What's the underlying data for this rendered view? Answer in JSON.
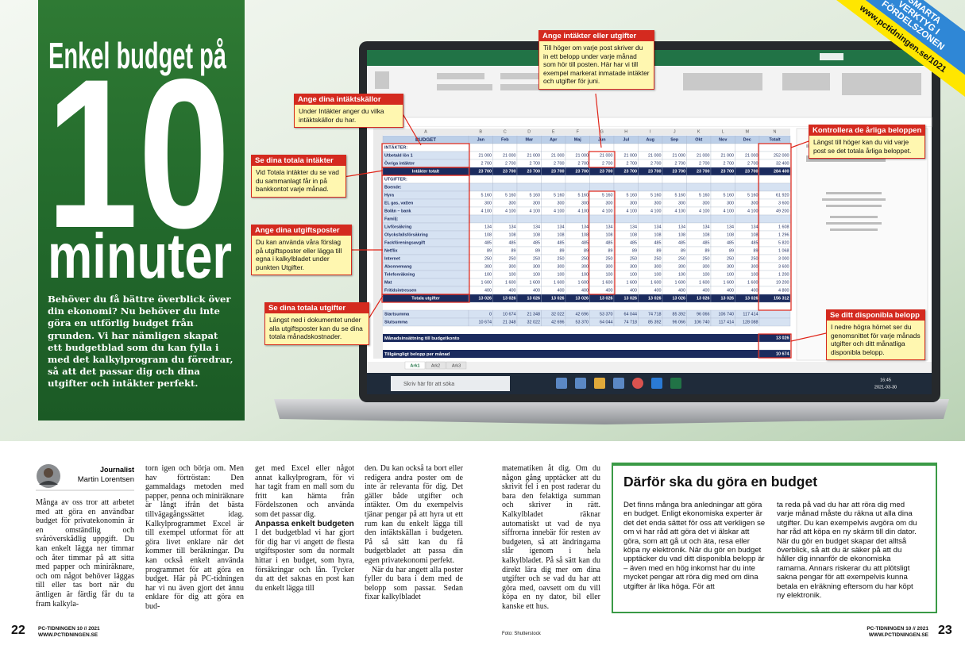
{
  "corner_banner": {
    "lines": [
      "SMARTA",
      "VERKTYG I",
      "FÖRDELSZONEN"
    ],
    "url": "www.pctidningen.se/1021"
  },
  "hero": {
    "title_top": "Enkel budget på",
    "title_number": "10",
    "title_bottom": "minuter",
    "lead": "Behöver du få bättre överblick över din ekonomi? Nu behöver du inte göra en utförlig budget från grunden. Vi har nämligen skapat ett budgetblad som du kan fylla i med det kalkylprogram du föredrar, så att det passar dig och dina utgifter och intäkter perfekt."
  },
  "spreadsheet": {
    "col_letters": [
      "A",
      "B",
      "C",
      "D",
      "E",
      "F",
      "G",
      "H",
      "I",
      "J",
      "K",
      "L",
      "M",
      "N"
    ],
    "title": "BUDGET",
    "months": [
      "Jan",
      "Feb",
      "Mar",
      "Apr",
      "Maj",
      "Jun",
      "Jul",
      "Aug",
      "Sep",
      "Okt",
      "Nov",
      "Dec"
    ],
    "total_header": "Totalt",
    "income": {
      "heading": "INTÄKTER:",
      "rows": [
        {
          "label": "Utbetald lön 1",
          "cells": [
            "21 000",
            "21 000",
            "21 000",
            "21 000",
            "21 000",
            "21 000",
            "21 000",
            "21 000",
            "21 000",
            "21 000",
            "21 000",
            "21 000",
            "252 000"
          ]
        },
        {
          "label": "Övriga intäkter",
          "cells": [
            "2 700",
            "2 700",
            "2 700",
            "2 700",
            "2 700",
            "2 700",
            "2 700",
            "2 700",
            "2 700",
            "2 700",
            "2 700",
            "2 700",
            "32 400"
          ]
        }
      ],
      "total": {
        "label": "Intäkter totalt",
        "cells": [
          "23 700",
          "23 700",
          "23 700",
          "23 700",
          "23 700",
          "23 700",
          "23 700",
          "23 700",
          "23 700",
          "23 700",
          "23 700",
          "23 700",
          "284 400"
        ]
      }
    },
    "expenses": {
      "heading": "UTGIFTER:",
      "groups": [
        {
          "heading": "Boende:",
          "rows": [
            {
              "label": "Hyra",
              "cells": [
                "5 160",
                "5 160",
                "5 160",
                "5 160",
                "5 160",
                "5 160",
                "5 160",
                "5 160",
                "5 160",
                "5 160",
                "5 160",
                "5 160",
                "61 920"
              ]
            },
            {
              "label": "El, gas, vatten",
              "cells": [
                "300",
                "300",
                "300",
                "300",
                "300",
                "300",
                "300",
                "300",
                "300",
                "300",
                "300",
                "300",
                "3 600"
              ]
            },
            {
              "label": "Bolån – bank",
              "cells": [
                "4 100",
                "4 100",
                "4 100",
                "4 100",
                "4 100",
                "4 100",
                "4 100",
                "4 100",
                "4 100",
                "4 100",
                "4 100",
                "4 100",
                "49 200"
              ]
            }
          ]
        },
        {
          "heading": "Familj:",
          "rows": [
            {
              "label": "Livförsäkring",
              "cells": [
                "134",
                "134",
                "134",
                "134",
                "134",
                "134",
                "134",
                "134",
                "134",
                "134",
                "134",
                "134",
                "1 608"
              ]
            },
            {
              "label": "Olycksfallsförsäkring",
              "cells": [
                "108",
                "108",
                "108",
                "108",
                "108",
                "108",
                "108",
                "108",
                "108",
                "108",
                "108",
                "108",
                "1 296"
              ]
            },
            {
              "label": "Fackföreningsavgift",
              "cells": [
                "485",
                "485",
                "485",
                "485",
                "485",
                "485",
                "485",
                "485",
                "485",
                "485",
                "485",
                "485",
                "5 820"
              ]
            },
            {
              "label": "Netflix",
              "cells": [
                "89",
                "89",
                "89",
                "89",
                "89",
                "89",
                "89",
                "89",
                "89",
                "89",
                "89",
                "89",
                "1 068"
              ]
            },
            {
              "label": "Internet",
              "cells": [
                "250",
                "250",
                "250",
                "250",
                "250",
                "250",
                "250",
                "250",
                "250",
                "250",
                "250",
                "250",
                "3 000"
              ]
            },
            {
              "label": "Abonnemang",
              "cells": [
                "300",
                "300",
                "300",
                "300",
                "300",
                "300",
                "300",
                "300",
                "300",
                "300",
                "300",
                "300",
                "3 600"
              ]
            },
            {
              "label": "Telefonräkning",
              "cells": [
                "100",
                "100",
                "100",
                "100",
                "100",
                "100",
                "100",
                "100",
                "100",
                "100",
                "100",
                "100",
                "1 200"
              ]
            },
            {
              "label": "Mat",
              "cells": [
                "1 600",
                "1 600",
                "1 600",
                "1 600",
                "1 600",
                "1 600",
                "1 600",
                "1 600",
                "1 600",
                "1 600",
                "1 600",
                "1 600",
                "19 200"
              ]
            },
            {
              "label": "Fritidsintressen",
              "cells": [
                "400",
                "400",
                "400",
                "400",
                "400",
                "400",
                "400",
                "400",
                "400",
                "400",
                "400",
                "400",
                "4 800"
              ]
            }
          ]
        }
      ],
      "total": {
        "label": "Totala utgifter",
        "cells": [
          "13 026",
          "13 026",
          "13 026",
          "13 026",
          "13 026",
          "13 026",
          "13 026",
          "13 026",
          "13 026",
          "13 026",
          "13 026",
          "13 026",
          "156 312"
        ]
      }
    },
    "balance": [
      {
        "label": "Startsumma",
        "cells": [
          "0",
          "10 674",
          "21 348",
          "32 022",
          "42 696",
          "53 370",
          "64 044",
          "74 718",
          "85 392",
          "96 066",
          "106 740",
          "117 414"
        ]
      },
      {
        "label": "Slutsumma",
        "cells": [
          "10 674",
          "21 348",
          "32 022",
          "42 696",
          "53 370",
          "64 044",
          "74 718",
          "85 392",
          "96 066",
          "106 740",
          "117 414",
          "128 088"
        ]
      }
    ],
    "summary": [
      {
        "label": "Månadsinsättning till budgetkonto",
        "value": "13 026"
      },
      {
        "label": "Tillgängligt belopp per månad",
        "value": "10 674"
      }
    ],
    "sheet_tabs": [
      "Ark1",
      "Ark2",
      "Ark3"
    ]
  },
  "taskbar": {
    "search": "Skriv här för att söka",
    "time": "16:45",
    "date": "2021-03-30"
  },
  "callouts": [
    {
      "heading": "Ange intäkter eller utgifter",
      "text": "Till höger om varje post skriver du in ett belopp under varje månad som hör till posten. Här har vi till exempel markerat inmatade intäkter och utgifter för juni."
    },
    {
      "heading": "Ange dina intäktskällor",
      "text": "Under Intäkter anger du vilka intäktskällor du har."
    },
    {
      "heading": "Se dina totala intäkter",
      "text": "Vid Totala intäkter du se vad du sammanlagt får in på bankkontot varje månad."
    },
    {
      "heading": "Ange dina utgiftsposter",
      "text": "Du kan använda våra förslag på utgiftsposter eller lägga till egna i kalkylbladet under punkten Utgifter."
    },
    {
      "heading": "Se dina totala utgifter",
      "text": "Längst ned i dokumentet under alla utgiftsposter kan du se dina totala månadskostnader."
    },
    {
      "heading": "Kontrollera de årliga beloppen",
      "text": "Längst till höger kan du vid varje post se det totala årliga beloppet."
    },
    {
      "heading": "Se ditt disponibla belopp",
      "text": "I nedre högra hörnet ser du genomsnittet för varje månads utgifter och ditt månatliga disponibla belopp."
    }
  ],
  "article": {
    "byline_role": "Journalist",
    "byline_name": "Martin Lorentsen",
    "subheading": "Anpassa enkelt budgeten",
    "columns": [
      [
        "Många av oss tror att arbetet med att göra en användbar budget för privatekonomin är en omständlig och svåröverskådlig uppgift. Du kan enkelt lägga ner timmar och åter timmar på att sitta med papper och miniräknare, och om något behöver läggas till eller tas bort när du äntligen är färdig får du ta fram kalkyla-"
      ],
      [
        "torn igen och börja om. Men hav förtröstan: Den gammaldags metoden med papper, penna och miniräknare är långt ifrån det bästa tillvägagångssättet idag. Kalkylprogrammet Excel är till exempel utformat för att göra livet enklare när det kommer till beräkningar. Du kan också enkelt använda programmet för att göra en budget. Här på PC-tidningen har vi nu även gjort det ännu enklare för dig att göra en bud-"
      ],
      [
        "get med Excel eller något annat kalkylprogram, för vi har tagit fram en mall som du fritt kan hämta från Fördelszonen och använda som det passar dig.",
        "I det budgetblad vi har gjort för dig har vi angett de flesta utgiftsposter som du normalt hittar i en budget, som hyra, försäkringar och lån. Tycker du att det saknas en post kan du enkelt lägga till"
      ],
      [
        "den. Du kan också ta bort eller redigera andra poster om de inte är relevanta för dig. Det gäller både utgifter och intäkter. Om du exempelvis tjänar pengar på att hyra ut ett rum kan du enkelt lägga till den intäktskällan i budgeten. På så sätt kan du få budgetbladet att passa din egen privatekonomi perfekt.",
        "När du har angett alla poster fyller du bara i dem med de belopp som passar. Sedan fixar kalkylbladet"
      ],
      [
        "matematiken åt dig. Om du någon gång upptäcker att du skrivit fel i en post raderar du bara den felaktiga summan och skriver in rätt. Kalkylbladet räknar automatiskt ut vad de nya siffrorna innebär för resten av budgeten, så att ändringarna slår igenom i hela kalkylbladet. På så sätt kan du direkt lära dig mer om dina utgifter och se vad du har att göra med, oavsett om du vill köpa en ny dator, bil eller kanske ett hus."
      ]
    ]
  },
  "sidebar": {
    "title": "Därför ska du göra en budget",
    "columns": [
      "Det finns många bra anledningar att göra en budget. Enligt ekonomiska experter är det det enda sättet för oss att verkligen se om vi har råd att göra det vi älskar att göra, som att gå ut och äta, resa eller köpa ny elektronik. När du gör en budget upptäcker du vad ditt disponibla belopp är – även med en hög inkomst har du inte mycket pengar att röra dig med om dina utgifter är lika höga. För att",
      "ta reda på vad du har att röra dig med varje månad måste du räkna ut alla dina utgifter. Du kan exempelvis avgöra om du har råd att köpa en ny skärm till din dator. När du gör en budget skapar det alltså överblick, så att du är säker på att du håller dig innanför de ekonomiska ramarna. Annars riskerar du att plötsligt sakna pengar för att exempelvis kunna betala en elräkning eftersom du har köpt ny elektronik."
    ]
  },
  "footer": {
    "left_page": "22",
    "right_page": "23",
    "issue": "PC-TIDNINGEN 10 // 2021",
    "website": "WWW.PCTIDNINGEN.SE",
    "photo_credit": "Foto: Shutterstock"
  }
}
